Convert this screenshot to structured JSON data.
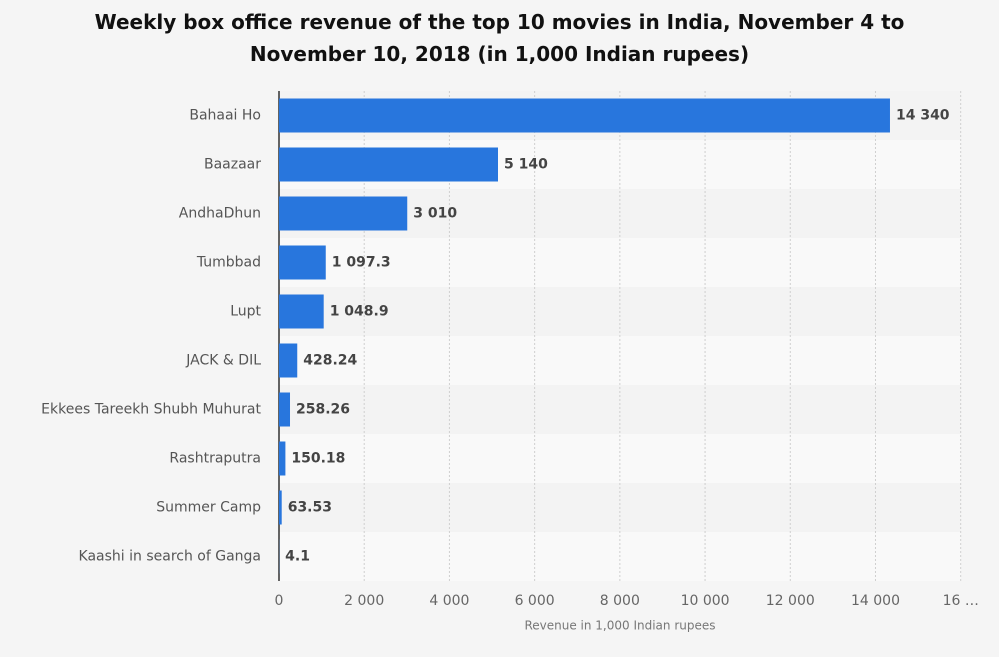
{
  "chart_data": {
    "type": "bar",
    "orientation": "horizontal",
    "title": "Weekly box office revenue of the top 10 movies in India, November 4 to November 10, 2018 (in 1,000 Indian rupees)",
    "x_label": "Revenue in 1,000 Indian rupees",
    "categories": [
      "Bahaai Ho",
      "Baazaar",
      "AndhaDhun",
      "Tumbbad",
      "Lupt",
      "JACK & DIL",
      "Ekkees Tareekh Shubh Muhurat",
      "Rashtraputra",
      "Summer Camp",
      "Kaashi in search of Ganga"
    ],
    "values": [
      14340,
      5140,
      3010,
      1097.3,
      1048.9,
      428.24,
      258.26,
      150.18,
      63.53,
      4.1
    ],
    "value_labels": [
      "14 340",
      "5 140",
      "3 010",
      "1 097.3",
      "1 048.9",
      "428.24",
      "258.26",
      "150.18",
      "63.53",
      "4.1"
    ],
    "color": "#2876dd",
    "xlim": [
      0,
      16000
    ],
    "xticks": [
      0,
      {
        "value": 2000,
        "label": "2 000"
      },
      {
        "value": 4000,
        "label": "4 000"
      },
      {
        "value": 6000,
        "label": "6 000"
      },
      {
        "value": 8000,
        "label": "8 000"
      },
      {
        "value": 10000,
        "label": "10 000"
      },
      {
        "value": 12000,
        "label": "12 000"
      },
      {
        "value": 14000,
        "label": "14 000"
      },
      {
        "value": 16000,
        "label": "16 …"
      }
    ],
    "grid": true
  }
}
